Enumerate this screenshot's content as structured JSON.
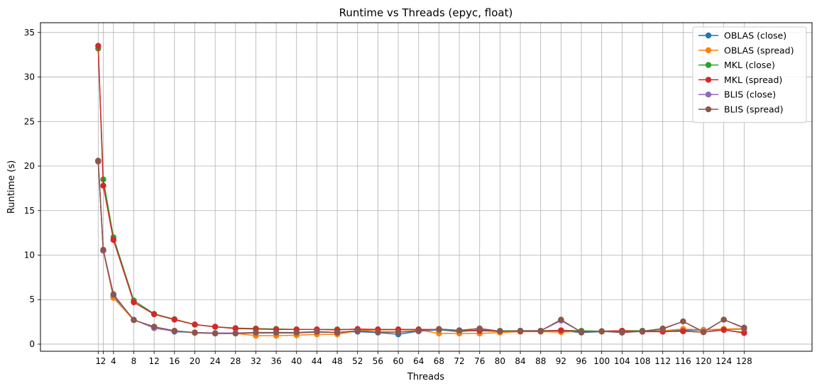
{
  "chart_data": {
    "type": "line",
    "title": "Runtime vs Threads (epyc, float)",
    "xlabel": "Threads",
    "ylabel": "Runtime (s)",
    "xlim": [
      -10.35,
      141.35
    ],
    "ylim": [
      -0.8,
      36.1
    ],
    "grid": true,
    "legend_position": "top-right",
    "x": [
      1,
      2,
      4,
      8,
      12,
      16,
      20,
      24,
      28,
      32,
      36,
      40,
      44,
      48,
      52,
      56,
      60,
      64,
      68,
      72,
      76,
      80,
      84,
      88,
      92,
      96,
      100,
      104,
      108,
      112,
      116,
      120,
      124,
      128
    ],
    "xticks": [
      1,
      2,
      4,
      8,
      12,
      16,
      20,
      24,
      28,
      32,
      36,
      40,
      44,
      48,
      52,
      56,
      60,
      64,
      68,
      72,
      76,
      80,
      84,
      88,
      92,
      96,
      100,
      104,
      108,
      112,
      116,
      120,
      124,
      128
    ],
    "xtick_labels": [
      "1",
      "2",
      "4",
      "8",
      "12",
      "16",
      "20",
      "24",
      "28",
      "32",
      "36",
      "40",
      "44",
      "48",
      "52",
      "56",
      "60",
      "64",
      "68",
      "72",
      "76",
      "80",
      "84",
      "88",
      "92",
      "96",
      "100",
      "104",
      "108",
      "112",
      "116",
      "120",
      "124",
      "128"
    ],
    "yticks": [
      0,
      5,
      10,
      15,
      20,
      25,
      30,
      35
    ],
    "ytick_labels": [
      "0",
      "5",
      "10",
      "15",
      "20",
      "25",
      "30",
      "35"
    ],
    "series": [
      {
        "name": "OBLAS (close)",
        "color": "#1f77b4",
        "values": [
          20.6,
          10.5,
          5.3,
          2.7,
          1.95,
          1.4,
          1.3,
          1.2,
          1.2,
          1.25,
          1.25,
          1.25,
          1.35,
          1.3,
          1.4,
          1.3,
          1.1,
          1.45,
          1.6,
          1.4,
          1.6,
          1.4,
          1.4,
          1.5,
          1.5,
          1.3,
          1.4,
          1.4,
          1.4,
          1.45,
          1.55,
          1.6,
          1.65,
          1.7
        ]
      },
      {
        "name": "OBLAS (spread)",
        "color": "#ff7f0e",
        "values": [
          20.5,
          10.5,
          5.2,
          2.7,
          1.9,
          1.5,
          1.25,
          1.2,
          1.2,
          0.95,
          0.95,
          1.0,
          1.1,
          1.1,
          1.5,
          1.6,
          1.6,
          1.6,
          1.2,
          1.2,
          1.2,
          1.3,
          1.4,
          1.4,
          1.35,
          1.45,
          1.4,
          1.5,
          1.5,
          1.5,
          1.7,
          1.6,
          1.7,
          1.75
        ]
      },
      {
        "name": "MKL (close)",
        "color": "#2ca02c",
        "values": [
          33.2,
          18.5,
          12.0,
          4.9,
          3.4,
          2.8,
          2.2,
          1.95,
          1.8,
          1.75,
          1.7,
          1.65,
          1.65,
          1.65,
          1.65,
          1.65,
          1.65,
          1.65,
          1.6,
          1.5,
          1.5,
          1.5,
          1.5,
          1.5,
          1.55,
          1.5,
          1.45,
          1.5,
          1.5,
          1.45,
          1.45,
          1.35,
          1.6,
          1.3
        ]
      },
      {
        "name": "MKL (spread)",
        "color": "#d62728",
        "values": [
          33.5,
          17.8,
          11.7,
          4.7,
          3.35,
          2.75,
          2.2,
          1.95,
          1.75,
          1.7,
          1.65,
          1.65,
          1.65,
          1.6,
          1.7,
          1.65,
          1.65,
          1.65,
          1.65,
          1.55,
          1.5,
          1.45,
          1.45,
          1.45,
          1.55,
          1.4,
          1.45,
          1.5,
          1.4,
          1.4,
          1.45,
          1.35,
          1.6,
          1.25
        ]
      },
      {
        "name": "BLIS (close)",
        "color": "#9467bd",
        "values": [
          20.5,
          10.5,
          5.5,
          2.75,
          1.8,
          1.45,
          1.3,
          1.25,
          1.25,
          1.3,
          1.3,
          1.3,
          1.4,
          1.3,
          1.5,
          1.35,
          1.35,
          1.45,
          1.65,
          1.55,
          1.75,
          1.45,
          1.5,
          1.5,
          2.65,
          1.35,
          1.45,
          1.3,
          1.45,
          1.7,
          2.55,
          1.4,
          2.75,
          1.8
        ]
      },
      {
        "name": "BLIS (spread)",
        "color": "#8c564b",
        "values": [
          20.6,
          10.6,
          5.6,
          2.7,
          1.95,
          1.5,
          1.3,
          1.2,
          1.2,
          1.3,
          1.3,
          1.3,
          1.4,
          1.3,
          1.5,
          1.35,
          1.35,
          1.5,
          1.7,
          1.55,
          1.75,
          1.45,
          1.5,
          1.5,
          2.75,
          1.35,
          1.45,
          1.3,
          1.45,
          1.75,
          2.55,
          1.35,
          2.75,
          1.85
        ]
      }
    ]
  }
}
